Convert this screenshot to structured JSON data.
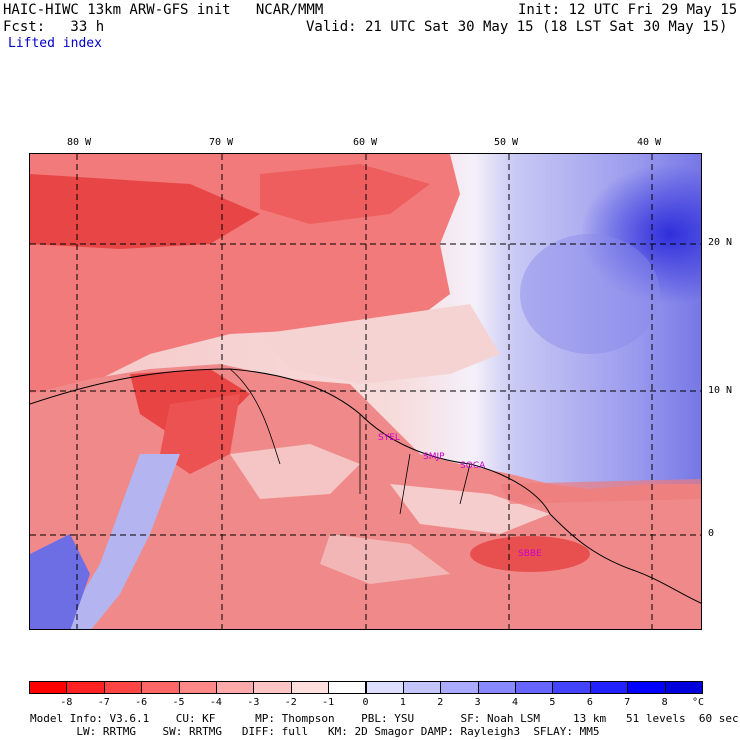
{
  "header": {
    "title": "HAIC-HIWC 13km ARW-GFS init   NCAR/MMM",
    "init": "Init: 12 UTC Fri 29 May 15",
    "fcst": "Fcst:   33 h",
    "valid": "Valid: 21 UTC Sat 30 May 15 (18 LST Sat 30 May 15)",
    "field": "Lifted index"
  },
  "map": {
    "lon_labels": [
      "80 W",
      "70 W",
      "60 W",
      "50 W",
      "40 W"
    ],
    "lat_labels": [
      "20 N",
      "10 N",
      "0"
    ],
    "stations": [
      "SYEL",
      "SMJP",
      "SOCA",
      "SBBE"
    ],
    "colors": {
      "land_red": "#f07070",
      "deep_red": "#e83a3a",
      "light": "#f8d0d0",
      "blue": "#8888ee",
      "deep_blue": "#3333dd",
      "station": "#cc00cc"
    }
  },
  "colorbar": {
    "labels": [
      "-8",
      "-7",
      "-6",
      "-5",
      "-4",
      "-3",
      "-2",
      "-1",
      "0",
      "1",
      "2",
      "3",
      "4",
      "5",
      "6",
      "7",
      "8"
    ],
    "unit": "°C",
    "colors": [
      "#ff0000",
      "#ff2222",
      "#ff4444",
      "#ff6666",
      "#ff8888",
      "#ffaaaa",
      "#ffc4c4",
      "#ffdede",
      "#ffffff",
      "#dedeff",
      "#c4c4ff",
      "#aaaaff",
      "#8888ff",
      "#6666ff",
      "#4444ff",
      "#2222ff",
      "#0000ff",
      "#0000dd"
    ]
  },
  "footer": {
    "line1": "Model Info: V3.6.1    CU: KF      MP: Thompson    PBL: YSU       SF: Noah LSM     13 km   51 levels  60 sec",
    "line2": "       LW: RRTMG    SW: RRTMG   DIFF: full   KM: 2D Smagor DAMP: Rayleigh3  SFLAY: MM5"
  }
}
